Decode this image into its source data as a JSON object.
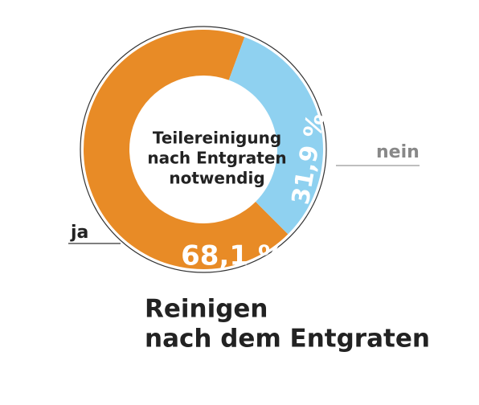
{
  "chart_data": {
    "type": "donut",
    "title": [
      "Reinigen",
      "nach dem Entgraten"
    ],
    "center_label": [
      "Teilereinigung",
      "nach Entgraten",
      "notwendig"
    ],
    "categories": [
      "ja",
      "nein"
    ],
    "values": [
      68.1,
      31.9
    ],
    "value_labels": [
      "68,1 %",
      "31,9 %"
    ],
    "colors": [
      "#e88b26",
      "#8fd1f0"
    ]
  }
}
